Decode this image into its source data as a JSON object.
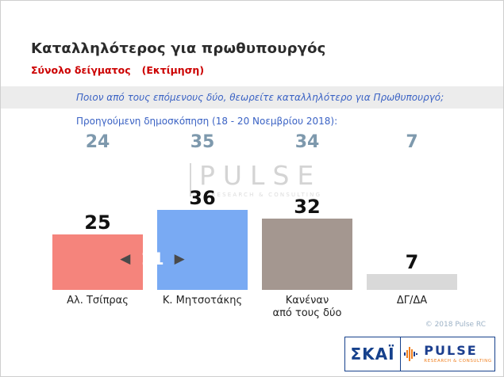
{
  "header": {
    "title": "Καταλληλότερος για πρωθυπουργός",
    "subtitle": "Σύνολο δείγματος",
    "subtitle_note": "(Εκτίμηση)"
  },
  "question": "Ποιον από τους επόμενους δύο, θεωρείτε καταλληλότερο για Πρωθυπουργό;",
  "previous_poll_label": "Προηγούμενη δημοσκόπηση (18 - 20 Νοεμβρίου 2018):",
  "chart_data": {
    "type": "bar",
    "categories": [
      "Αλ. Τσίπρας",
      "Κ. Μητσοτάκης",
      "Κανέναν\nαπό τους δύο",
      "ΔΓ/ΔΑ"
    ],
    "series": [
      {
        "name": "current",
        "values": [
          25,
          36,
          32,
          7
        ]
      },
      {
        "name": "previous",
        "values": [
          24,
          35,
          34,
          7
        ]
      }
    ],
    "bar_colors": [
      "#f5847c",
      "#79aaf3",
      "#a49790",
      "#d9d9d9"
    ],
    "ylim": [
      0,
      40
    ],
    "grid": false,
    "legend_position": "none",
    "difference_annotation": "11"
  },
  "icons": {
    "left_arrow": "◀",
    "right_arrow": "▶"
  },
  "watermark": {
    "text": "PULSE",
    "sub": "RESEARCH & CONSULTING"
  },
  "footer": {
    "copyright": "© 2018 Pulse RC",
    "skai_logo": "ΣΚΑΪ",
    "pulse_logo": "PULSE",
    "pulse_logo_sub": "RESEARCH & CONSULTING"
  },
  "colors": {
    "accent_red": "#cc0000",
    "text_blue": "#3a62c4",
    "prev_value_blue": "#7e99ad",
    "skai_blue": "#16418c",
    "pulse_orange": "#f07f1f"
  }
}
